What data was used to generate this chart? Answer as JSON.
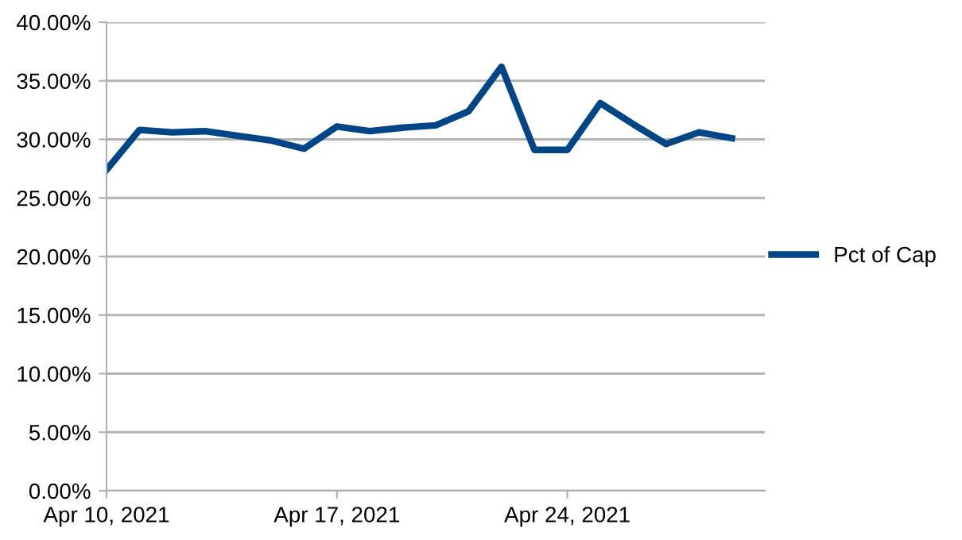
{
  "chart_data": {
    "type": "line",
    "x": [
      "2021-04-10",
      "2021-04-11",
      "2021-04-12",
      "2021-04-13",
      "2021-04-14",
      "2021-04-15",
      "2021-04-16",
      "2021-04-17",
      "2021-04-18",
      "2021-04-19",
      "2021-04-20",
      "2021-04-21",
      "2021-04-22",
      "2021-04-23",
      "2021-04-24",
      "2021-04-25",
      "2021-04-26",
      "2021-04-27",
      "2021-04-28",
      "2021-04-29"
    ],
    "series": [
      {
        "name": "Pct of Cap",
        "color": "#004586",
        "values": [
          27.4,
          30.8,
          30.6,
          30.7,
          30.3,
          29.9,
          29.2,
          31.1,
          30.7,
          31.0,
          31.2,
          32.4,
          36.2,
          29.1,
          29.1,
          33.1,
          31.3,
          29.6,
          30.6,
          30.1
        ]
      }
    ],
    "xlim": [
      "2021-04-10",
      "2021-04-30"
    ],
    "xticks": [
      {
        "value": "2021-04-10",
        "label": "Apr 10, 2021"
      },
      {
        "value": "2021-04-17",
        "label": "Apr 17, 2021"
      },
      {
        "value": "2021-04-24",
        "label": "Apr 24, 2021"
      }
    ],
    "ylim": [
      0,
      40
    ],
    "yticks": [
      {
        "value": 0,
        "label": "0.00%"
      },
      {
        "value": 5,
        "label": "5.00%"
      },
      {
        "value": 10,
        "label": "10.00%"
      },
      {
        "value": 15,
        "label": "15.00%"
      },
      {
        "value": 20,
        "label": "20.00%"
      },
      {
        "value": 25,
        "label": "25.00%"
      },
      {
        "value": 30,
        "label": "30.00%"
      },
      {
        "value": 35,
        "label": "35.00%"
      },
      {
        "value": 40,
        "label": "40.00%"
      }
    ],
    "grid": "y",
    "legend": "right",
    "marker": "none",
    "line_style": "solid"
  }
}
